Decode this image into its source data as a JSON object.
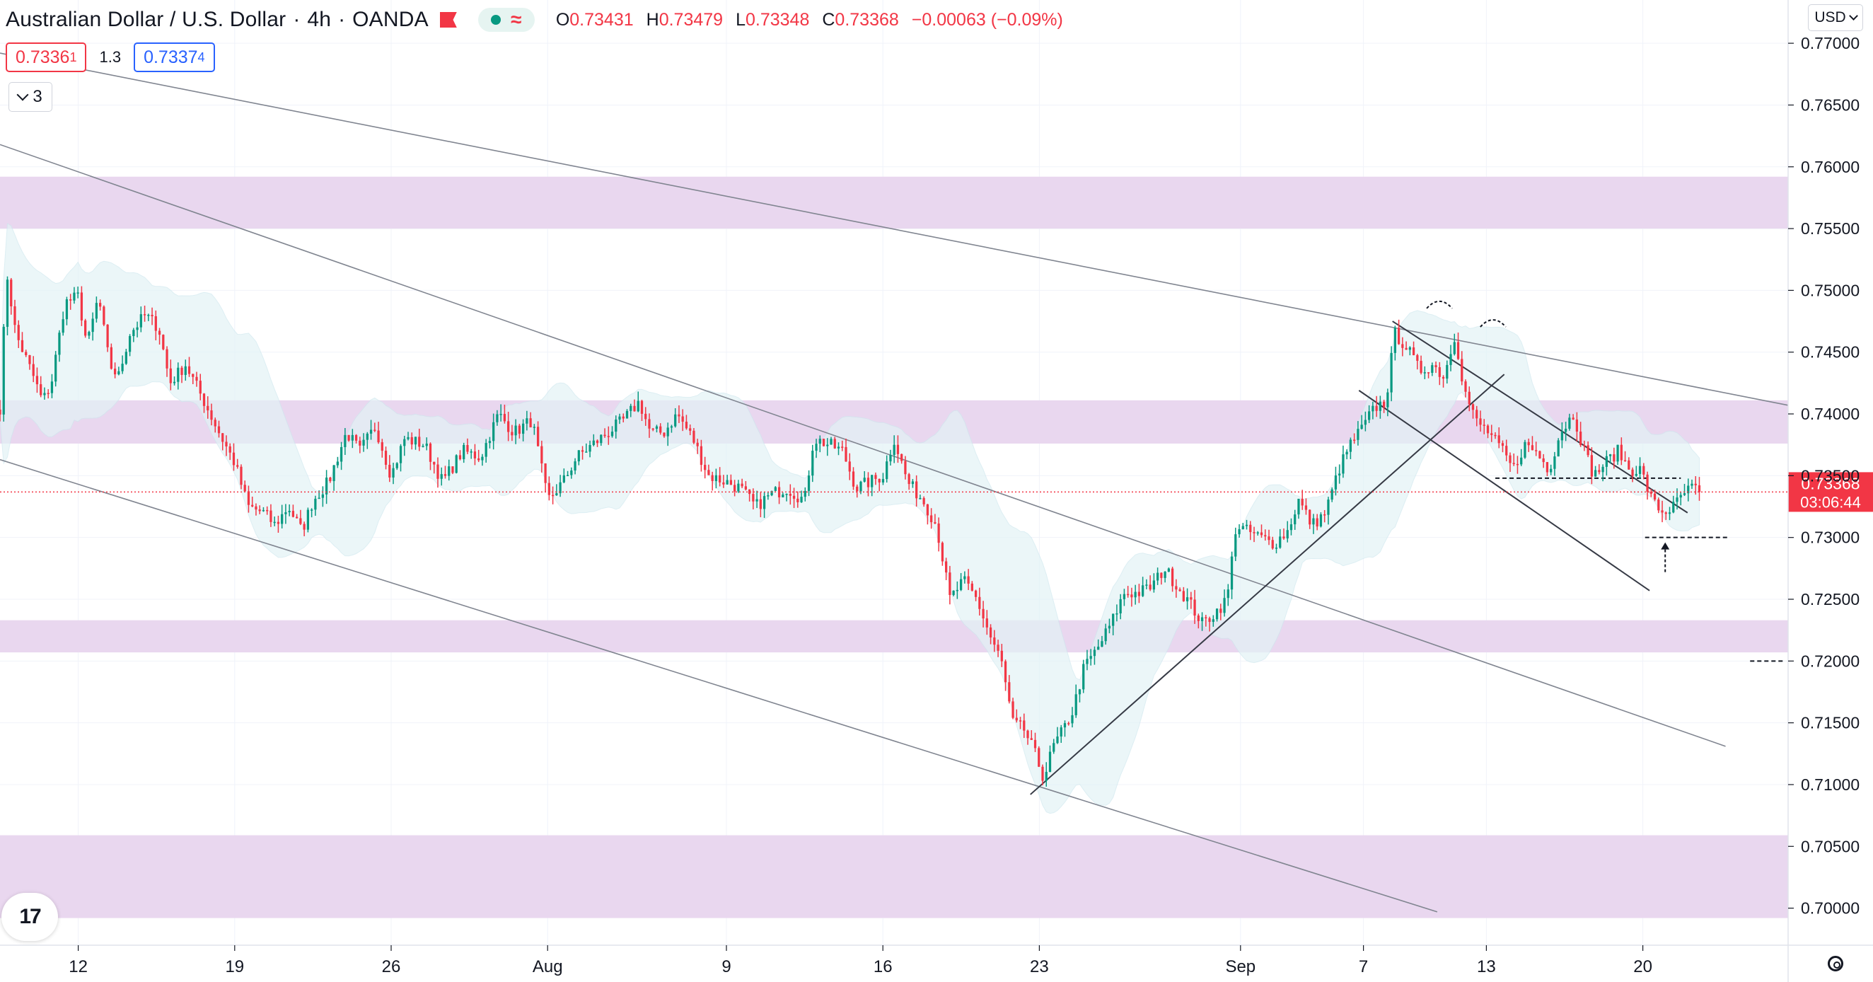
{
  "header": {
    "symbol": "Australian Dollar / U.S. Dollar",
    "interval": "4h",
    "broker": "OANDA",
    "sep": "·",
    "ohlc": {
      "o_label": "O",
      "o": "0.73431",
      "h_label": "H",
      "h": "0.73479",
      "l_label": "L",
      "l": "0.73348",
      "c_label": "C",
      "c": "0.73368",
      "change": "−0.00063 (−0.09%)"
    }
  },
  "quote": {
    "sell_main": "0.7336",
    "sell_sup": "1",
    "spread": "1.3",
    "buy_main": "0.7337",
    "buy_sup": "4"
  },
  "indicators": {
    "count": "3"
  },
  "currency": {
    "label": "USD"
  },
  "colors": {
    "up": "#089981",
    "down": "#f23645",
    "zone": "#e8d5ee",
    "band": "#e3f3f6",
    "price_tag": "#f23645"
  },
  "chart_data": {
    "type": "candlestick",
    "title": "Australian Dollar / U.S. Dollar",
    "interval": "4h",
    "ylim": [
      0.697,
      0.7735
    ],
    "y_ticks": [
      "0.77000",
      "0.76500",
      "0.76000",
      "0.75500",
      "0.75000",
      "0.74500",
      "0.74000",
      "0.73500",
      "0.73000",
      "0.72500",
      "0.72000",
      "0.71500",
      "0.71000",
      "0.70500",
      "0.70000"
    ],
    "x_ticks": [
      {
        "label": "12",
        "x": 0
      },
      {
        "label": "19",
        "x": 7
      },
      {
        "label": "26",
        "x": 14
      },
      {
        "label": "Aug",
        "x": 21
      },
      {
        "label": "9",
        "x": 29
      },
      {
        "label": "16",
        "x": 36
      },
      {
        "label": "23",
        "x": 43
      },
      {
        "label": "Sep",
        "x": 52
      },
      {
        "label": "7",
        "x": 57.5
      },
      {
        "label": "13",
        "x": 63
      },
      {
        "label": "20",
        "x": 70
      }
    ],
    "xlim": [
      -3.5,
      76.5
    ],
    "current_price": "0.73368",
    "countdown": "03:06:44",
    "current_value": 0.73368,
    "anchors": [
      [
        -3.5,
        0.7405
      ],
      [
        -3.2,
        0.7515
      ],
      [
        -2.8,
        0.7465
      ],
      [
        -2.0,
        0.743
      ],
      [
        -1.6,
        0.741
      ],
      [
        -1.2,
        0.7425
      ],
      [
        -0.6,
        0.749
      ],
      [
        0.0,
        0.7495
      ],
      [
        0.4,
        0.7455
      ],
      [
        0.9,
        0.7495
      ],
      [
        1.4,
        0.744
      ],
      [
        1.8,
        0.743
      ],
      [
        2.3,
        0.7465
      ],
      [
        3.0,
        0.748
      ],
      [
        3.6,
        0.747
      ],
      [
        4.1,
        0.7425
      ],
      [
        4.8,
        0.744
      ],
      [
        5.5,
        0.7415
      ],
      [
        6.3,
        0.7385
      ],
      [
        7.0,
        0.736
      ],
      [
        7.6,
        0.7325
      ],
      [
        8.3,
        0.732
      ],
      [
        8.8,
        0.731
      ],
      [
        9.4,
        0.7325
      ],
      [
        10.0,
        0.7305
      ],
      [
        10.5,
        0.733
      ],
      [
        11.2,
        0.7345
      ],
      [
        12.0,
        0.7385
      ],
      [
        12.6,
        0.737
      ],
      [
        13.3,
        0.739
      ],
      [
        14.0,
        0.735
      ],
      [
        14.6,
        0.738
      ],
      [
        15.5,
        0.7375
      ],
      [
        16.3,
        0.7345
      ],
      [
        17.2,
        0.737
      ],
      [
        18.0,
        0.7365
      ],
      [
        18.8,
        0.74
      ],
      [
        19.5,
        0.7385
      ],
      [
        20.3,
        0.7395
      ],
      [
        21.0,
        0.733
      ],
      [
        21.7,
        0.7345
      ],
      [
        22.3,
        0.7365
      ],
      [
        23.0,
        0.7375
      ],
      [
        23.7,
        0.7385
      ],
      [
        24.4,
        0.7395
      ],
      [
        25.1,
        0.741
      ],
      [
        25.6,
        0.7385
      ],
      [
        26.2,
        0.7385
      ],
      [
        26.8,
        0.74
      ],
      [
        27.5,
        0.738
      ],
      [
        28.2,
        0.735
      ],
      [
        29.0,
        0.7345
      ],
      [
        29.6,
        0.734
      ],
      [
        30.3,
        0.7325
      ],
      [
        31.0,
        0.7335
      ],
      [
        31.7,
        0.734
      ],
      [
        32.5,
        0.733
      ],
      [
        32.9,
        0.738
      ],
      [
        33.6,
        0.7375
      ],
      [
        34.2,
        0.737
      ],
      [
        34.8,
        0.734
      ],
      [
        35.4,
        0.7345
      ],
      [
        36.0,
        0.735
      ],
      [
        36.5,
        0.738
      ],
      [
        37.1,
        0.7345
      ],
      [
        37.8,
        0.733
      ],
      [
        38.4,
        0.731
      ],
      [
        39.0,
        0.725
      ],
      [
        39.6,
        0.7265
      ],
      [
        40.2,
        0.725
      ],
      [
        40.8,
        0.722
      ],
      [
        41.3,
        0.72
      ],
      [
        41.8,
        0.715
      ],
      [
        42.3,
        0.7145
      ],
      [
        42.8,
        0.7125
      ],
      [
        43.2,
        0.7105
      ],
      [
        43.6,
        0.713
      ],
      [
        44.1,
        0.7145
      ],
      [
        44.5,
        0.716
      ],
      [
        45.0,
        0.7195
      ],
      [
        45.6,
        0.721
      ],
      [
        46.2,
        0.723
      ],
      [
        46.8,
        0.7255
      ],
      [
        47.4,
        0.7255
      ],
      [
        48.0,
        0.726
      ],
      [
        48.6,
        0.7275
      ],
      [
        49.2,
        0.726
      ],
      [
        49.8,
        0.7245
      ],
      [
        50.3,
        0.723
      ],
      [
        50.9,
        0.724
      ],
      [
        51.4,
        0.725
      ],
      [
        51.8,
        0.731
      ],
      [
        52.3,
        0.7305
      ],
      [
        52.9,
        0.73
      ],
      [
        53.5,
        0.7295
      ],
      [
        54.1,
        0.7305
      ],
      [
        54.6,
        0.733
      ],
      [
        55.2,
        0.731
      ],
      [
        55.8,
        0.732
      ],
      [
        56.4,
        0.7355
      ],
      [
        56.9,
        0.7375
      ],
      [
        57.5,
        0.739
      ],
      [
        58.0,
        0.7405
      ],
      [
        58.5,
        0.741
      ],
      [
        58.9,
        0.7465
      ],
      [
        59.4,
        0.7455
      ],
      [
        60.0,
        0.7435
      ],
      [
        60.6,
        0.744
      ],
      [
        61.1,
        0.743
      ],
      [
        61.6,
        0.7465
      ],
      [
        62.0,
        0.742
      ],
      [
        62.5,
        0.7395
      ],
      [
        63.1,
        0.7385
      ],
      [
        63.7,
        0.737
      ],
      [
        64.2,
        0.7355
      ],
      [
        64.7,
        0.7375
      ],
      [
        65.2,
        0.737
      ],
      [
        65.8,
        0.7355
      ],
      [
        66.3,
        0.7385
      ],
      [
        66.9,
        0.74
      ],
      [
        67.3,
        0.7375
      ],
      [
        67.8,
        0.735
      ],
      [
        68.3,
        0.736
      ],
      [
        68.9,
        0.737
      ],
      [
        69.4,
        0.7355
      ],
      [
        69.9,
        0.7355
      ],
      [
        70.4,
        0.733
      ],
      [
        70.9,
        0.732
      ],
      [
        71.4,
        0.7325
      ],
      [
        71.8,
        0.7335
      ],
      [
        72.2,
        0.734
      ],
      [
        72.6,
        0.7337
      ]
    ],
    "zones": [
      {
        "from": 0.755,
        "to": 0.7592
      },
      {
        "from": 0.7376,
        "to": 0.7411
      },
      {
        "from": 0.7207,
        "to": 0.7233
      },
      {
        "from": 0.6992,
        "to": 0.7059
      }
    ],
    "trendlines": [
      {
        "from": [
          -3.5,
          0.7692
        ],
        "to": [
          76.5,
          0.7407
        ]
      },
      {
        "from": [
          -3.5,
          0.7618
        ],
        "to": [
          73.7,
          0.7131
        ]
      },
      {
        "from": [
          -3.5,
          0.7363
        ],
        "to": [
          60.8,
          0.6997
        ]
      },
      {
        "from": [
          42.6,
          0.7092
        ],
        "to": [
          63.8,
          0.7432
        ]
      },
      {
        "from": [
          58.8,
          0.7475
        ],
        "to": [
          72.0,
          0.732
        ]
      },
      {
        "from": [
          57.3,
          0.7419
        ],
        "to": [
          70.3,
          0.7257
        ]
      }
    ],
    "levels": [
      {
        "y": 0.7348,
        "from": 63.4,
        "to": 71.7
      },
      {
        "y": 0.73,
        "from": 70.1,
        "to": 73.8
      },
      {
        "y": 0.72,
        "from": 74.8,
        "to": 76.3
      }
    ],
    "markers": [
      {
        "type": "arc",
        "x": 60.9,
        "y": 0.749
      },
      {
        "type": "arc",
        "x": 63.3,
        "y": 0.7475
      },
      {
        "type": "arrow_up",
        "x": 71.0,
        "from": 0.7272,
        "to": 0.7296
      }
    ],
    "band": {
      "window": 20,
      "stddev": 2
    }
  }
}
